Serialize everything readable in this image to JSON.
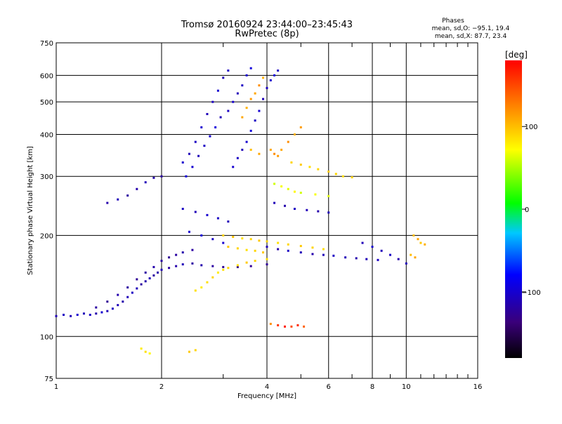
{
  "chart_data": {
    "type": "scatter",
    "title": "Tromsø 20160924 23:44:00–23:45:43",
    "subtitle": "RwPretec (8p)",
    "xlabel": "Frequency [MHz]",
    "ylabel": "Stationary phase Virtual Height [km]",
    "x_scale": "log",
    "y_scale": "log",
    "xlim": [
      1,
      16
    ],
    "ylim": [
      75,
      750
    ],
    "x_ticks": [
      1,
      2,
      4,
      6,
      8,
      10,
      16
    ],
    "x_minor_ticks": [
      3,
      5,
      7,
      9,
      11,
      12,
      13,
      14,
      15
    ],
    "y_ticks": [
      75,
      100,
      200,
      300,
      400,
      500,
      600,
      750
    ],
    "grid": true,
    "stats": {
      "heading": "Phases",
      "line_O": "mean, sd,O: −95.1, 19.4",
      "line_X": "mean, sd,X:  87.7, 23.4"
    },
    "colorbar": {
      "label": "[deg]",
      "ticks": [
        100,
        0,
        -100
      ],
      "range": [
        -180,
        180
      ]
    },
    "series": [
      {
        "values": [
          [
            1.0,
            115,
            -110
          ],
          [
            1.05,
            116,
            -105
          ],
          [
            1.1,
            115,
            -110
          ],
          [
            1.15,
            116,
            -100
          ],
          [
            1.2,
            117,
            -110
          ],
          [
            1.25,
            116,
            -105
          ],
          [
            1.3,
            117,
            -115
          ],
          [
            1.35,
            118,
            -100
          ],
          [
            1.4,
            119,
            -110
          ],
          [
            1.45,
            121,
            -105
          ],
          [
            1.5,
            124,
            -110
          ],
          [
            1.55,
            127,
            -115
          ],
          [
            1.6,
            131,
            -110
          ],
          [
            1.65,
            135,
            -105
          ],
          [
            1.7,
            139,
            -110
          ],
          [
            1.75,
            143,
            -120
          ],
          [
            1.8,
            146,
            -115
          ],
          [
            1.85,
            149,
            -110
          ],
          [
            1.9,
            152,
            -120
          ],
          [
            1.95,
            155,
            -115
          ],
          [
            2.0,
            158,
            -110
          ],
          [
            2.1,
            160,
            -120
          ],
          [
            2.2,
            162,
            -115
          ],
          [
            2.3,
            164,
            -110
          ],
          [
            2.45,
            165,
            -120
          ],
          [
            2.6,
            163,
            -115
          ],
          [
            2.8,
            162,
            -120
          ],
          [
            3.0,
            161,
            -125
          ],
          [
            3.3,
            161,
            -130
          ],
          [
            3.6,
            162,
            -125
          ],
          [
            4.0,
            164,
            -125
          ]
        ]
      },
      {
        "values": [
          [
            1.3,
            122,
            -120
          ],
          [
            1.4,
            127,
            -125
          ],
          [
            1.5,
            133,
            -115
          ],
          [
            1.6,
            140,
            -120
          ],
          [
            1.7,
            148,
            -125
          ],
          [
            1.8,
            155,
            -120
          ],
          [
            1.9,
            161,
            -115
          ],
          [
            2.0,
            168,
            -120
          ],
          [
            2.1,
            172,
            -125
          ],
          [
            2.2,
            175,
            -120
          ],
          [
            2.3,
            178,
            -115
          ],
          [
            2.45,
            181,
            -120
          ]
        ]
      },
      {
        "values": [
          [
            1.4,
            250,
            -115
          ],
          [
            1.5,
            256,
            -110
          ],
          [
            1.6,
            263,
            -120
          ],
          [
            1.7,
            275,
            -115
          ],
          [
            1.8,
            288,
            -110
          ],
          [
            1.9,
            297,
            -115
          ],
          [
            2.0,
            300,
            -120
          ]
        ]
      },
      {
        "values": [
          [
            2.3,
            330,
            -100
          ],
          [
            2.4,
            350,
            -110
          ],
          [
            2.5,
            380,
            -105
          ],
          [
            2.6,
            420,
            -100
          ],
          [
            2.7,
            460,
            -110
          ],
          [
            2.8,
            500,
            -105
          ],
          [
            2.9,
            540,
            -100
          ],
          [
            3.0,
            590,
            -110
          ],
          [
            3.1,
            620,
            -105
          ],
          [
            2.35,
            300,
            -95
          ],
          [
            2.45,
            320,
            -100
          ],
          [
            2.55,
            345,
            -110
          ],
          [
            2.65,
            370,
            -105
          ],
          [
            2.75,
            395,
            -100
          ],
          [
            2.85,
            420,
            -95
          ],
          [
            2.95,
            450,
            -110
          ],
          [
            3.1,
            470,
            -105
          ],
          [
            3.2,
            500,
            -100
          ],
          [
            3.3,
            530,
            -110
          ],
          [
            3.4,
            560,
            -105
          ],
          [
            3.5,
            600,
            -100
          ],
          [
            3.6,
            630,
            -95
          ]
        ]
      },
      {
        "values": [
          [
            3.2,
            320,
            -100
          ],
          [
            3.3,
            340,
            -105
          ],
          [
            3.4,
            360,
            -110
          ],
          [
            3.5,
            380,
            -100
          ],
          [
            3.6,
            410,
            -95
          ],
          [
            3.7,
            440,
            -105
          ],
          [
            3.8,
            470,
            -100
          ],
          [
            3.9,
            510,
            -110
          ],
          [
            4.0,
            550,
            -105
          ],
          [
            4.1,
            580,
            -100
          ],
          [
            4.2,
            600,
            -95
          ],
          [
            4.3,
            620,
            -105
          ]
        ]
      },
      {
        "values": [
          [
            3.4,
            450,
            110
          ],
          [
            3.5,
            480,
            105
          ],
          [
            3.6,
            510,
            115
          ],
          [
            3.7,
            530,
            110
          ],
          [
            3.8,
            560,
            120
          ],
          [
            3.9,
            590,
            105
          ],
          [
            4.1,
            360,
            110
          ],
          [
            4.2,
            350,
            120
          ],
          [
            4.3,
            345,
            115
          ],
          [
            4.4,
            360,
            110
          ],
          [
            4.6,
            380,
            120
          ],
          [
            4.8,
            400,
            105
          ],
          [
            5.0,
            420,
            115
          ],
          [
            3.6,
            360,
            100
          ],
          [
            3.8,
            350,
            110
          ]
        ]
      },
      {
        "values": [
          [
            4.7,
            330,
            90
          ],
          [
            5.0,
            325,
            95
          ],
          [
            5.3,
            320,
            85
          ],
          [
            5.6,
            315,
            90
          ],
          [
            6.0,
            310,
            95
          ],
          [
            6.3,
            305,
            90
          ],
          [
            6.6,
            300,
            85
          ],
          [
            7.0,
            298,
            90
          ]
        ]
      },
      {
        "values": [
          [
            4.2,
            285,
            60
          ],
          [
            4.4,
            280,
            70
          ],
          [
            4.6,
            275,
            65
          ],
          [
            4.8,
            270,
            75
          ],
          [
            5.0,
            268,
            60
          ],
          [
            5.5,
            265,
            70
          ],
          [
            6.0,
            262,
            65
          ],
          [
            4.2,
            250,
            -110
          ],
          [
            4.5,
            245,
            -115
          ],
          [
            4.8,
            240,
            -105
          ],
          [
            5.2,
            238,
            -110
          ],
          [
            5.6,
            236,
            -115
          ],
          [
            6.0,
            234,
            -110
          ]
        ]
      },
      {
        "values": [
          [
            2.3,
            240,
            -105
          ],
          [
            2.5,
            235,
            -110
          ],
          [
            2.7,
            230,
            -100
          ],
          [
            2.9,
            225,
            -105
          ],
          [
            3.1,
            220,
            -110
          ],
          [
            2.4,
            205,
            -100
          ],
          [
            2.6,
            200,
            -95
          ],
          [
            2.8,
            195,
            -105
          ],
          [
            3.0,
            190,
            -100
          ]
        ]
      },
      {
        "values": [
          [
            3.0,
            200,
            90
          ],
          [
            3.2,
            198,
            95
          ],
          [
            3.4,
            196,
            85
          ],
          [
            3.6,
            195,
            90
          ],
          [
            3.8,
            193,
            95
          ],
          [
            4.0,
            192,
            90
          ],
          [
            4.3,
            190,
            85
          ],
          [
            4.6,
            188,
            90
          ],
          [
            5.0,
            186,
            95
          ],
          [
            5.4,
            184,
            90
          ],
          [
            5.8,
            182,
            85
          ],
          [
            3.1,
            185,
            95
          ],
          [
            3.3,
            183,
            90
          ],
          [
            3.5,
            181,
            85
          ],
          [
            3.7,
            180,
            90
          ],
          [
            3.9,
            178,
            95
          ]
        ]
      },
      {
        "values": [
          [
            4.0,
            185,
            -110
          ],
          [
            4.3,
            182,
            -115
          ],
          [
            4.6,
            180,
            -105
          ],
          [
            5.0,
            178,
            -110
          ],
          [
            5.4,
            176,
            -115
          ],
          [
            5.8,
            175,
            -110
          ],
          [
            6.2,
            174,
            -105
          ],
          [
            6.7,
            172,
            -110
          ],
          [
            7.2,
            171,
            -115
          ],
          [
            7.7,
            170,
            -110
          ],
          [
            8.3,
            169,
            -105
          ]
        ]
      },
      {
        "values": [
          [
            2.7,
            145,
            85
          ],
          [
            2.8,
            150,
            90
          ],
          [
            2.9,
            155,
            80
          ],
          [
            3.0,
            158,
            85
          ],
          [
            3.1,
            160,
            90
          ],
          [
            3.3,
            163,
            85
          ],
          [
            3.5,
            166,
            95
          ],
          [
            3.7,
            168,
            90
          ],
          [
            4.0,
            170,
            85
          ],
          [
            2.6,
            140,
            80
          ],
          [
            2.5,
            137,
            85
          ]
        ]
      },
      {
        "values": [
          [
            4.3,
            108,
            160
          ],
          [
            4.5,
            107,
            170
          ],
          [
            4.7,
            107,
            150
          ],
          [
            4.9,
            108,
            165
          ],
          [
            5.1,
            107,
            140
          ],
          [
            4.1,
            109,
            120
          ]
        ]
      },
      {
        "values": [
          [
            1.75,
            92,
            80
          ],
          [
            1.8,
            90,
            85
          ],
          [
            1.85,
            89,
            75
          ],
          [
            2.4,
            90,
            95
          ],
          [
            2.5,
            91,
            90
          ]
        ]
      },
      {
        "values": [
          [
            10.5,
            200,
            100
          ],
          [
            10.8,
            195,
            110
          ],
          [
            11.0,
            190,
            95
          ],
          [
            11.3,
            188,
            105
          ],
          [
            10.3,
            175,
            100
          ],
          [
            10.6,
            172,
            110
          ]
        ]
      },
      {
        "values": [
          [
            8.5,
            180,
            -110
          ],
          [
            9.0,
            175,
            -105
          ],
          [
            9.5,
            170,
            -115
          ],
          [
            10.0,
            165,
            -110
          ],
          [
            8.0,
            185,
            -100
          ],
          [
            7.5,
            190,
            -110
          ]
        ]
      }
    ]
  }
}
